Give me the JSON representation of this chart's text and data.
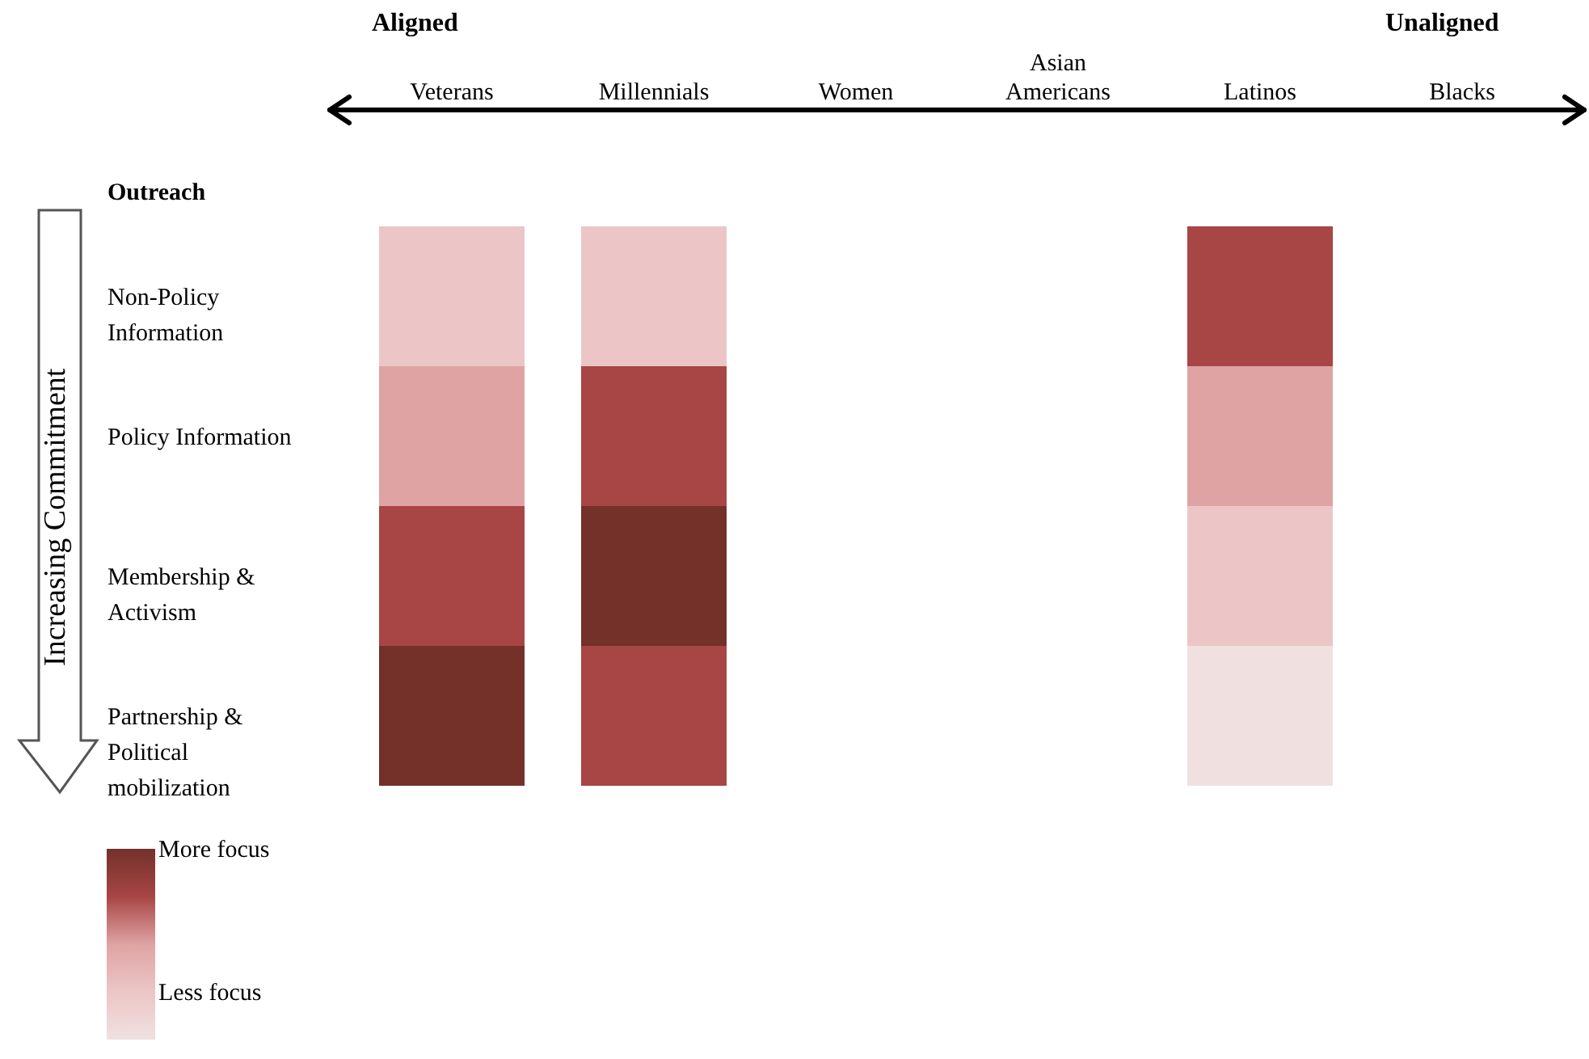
{
  "chart_data": {
    "type": "heatmap",
    "categories": [
      "Veterans",
      "Millennials",
      "Women",
      "Asian Americans",
      "Latinos",
      "Blacks"
    ],
    "y_categories": [
      "Non-Policy Information",
      "Policy Information",
      "Membership & Activism",
      "Partnership & Political mobilization"
    ],
    "ylabel": "Outreach",
    "cells": [
      [
        1,
        1,
        null,
        null,
        3,
        null
      ],
      [
        2,
        3,
        null,
        null,
        2,
        null
      ],
      [
        3,
        4,
        null,
        null,
        1,
        null
      ],
      [
        4,
        3,
        null,
        null,
        0,
        null
      ]
    ],
    "clim": [
      0,
      4
    ],
    "cticks": [
      {
        "value": 4,
        "label": "More focus"
      },
      {
        "value": 1,
        "label": "Less focus"
      }
    ],
    "colors": [
      "#f0e0e0",
      "#ecc6c6",
      "#dfa3a3",
      "#a84545",
      "#73312a"
    ],
    "annotations": [
      "Aligned",
      "Unaligned",
      "Increasing Commitment"
    ]
  }
}
